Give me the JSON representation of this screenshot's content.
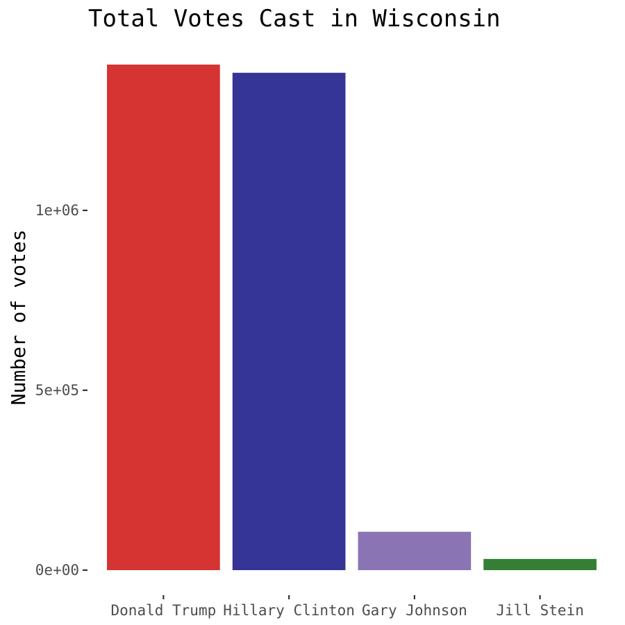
{
  "chart_data": {
    "type": "bar",
    "title": "Total Votes Cast in Wisconsin",
    "xlabel": "",
    "ylabel": "Number of votes",
    "categories": [
      "Donald Trump",
      "Hillary Clinton",
      "Gary Johnson",
      "Jill Stein"
    ],
    "values": [
      1405284,
      1382536,
      106674,
      31072
    ],
    "colors": [
      "#d63333",
      "#353597",
      "#8a74b4",
      "#347f34"
    ],
    "ylim": [
      0,
      1405284
    ],
    "yticks": [
      0,
      500000,
      1000000
    ],
    "ytick_labels": [
      "0e+00",
      "5e+05",
      "1e+06"
    ],
    "grid": false,
    "legend": "none"
  }
}
